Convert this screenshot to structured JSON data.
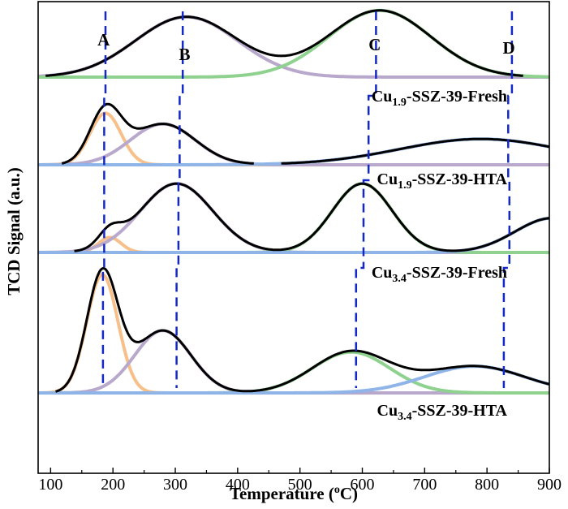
{
  "chart_data": {
    "type": "line",
    "xlabel": "Temperature (°C)",
    "xlabel_parts": {
      "before": "Temperature (",
      "sup": "o",
      "after": "C)"
    },
    "ylabel": "TCD Signal (a.u.)",
    "xlim": [
      80,
      900
    ],
    "xticks": [
      100,
      200,
      300,
      400,
      500,
      600,
      700,
      800,
      900
    ],
    "y_ticks_shown": false,
    "grid": false,
    "legend": "none",
    "colors": {
      "measured": "#000000",
      "peak_A": "#f7c08a",
      "peak_B": "#b8a9cc",
      "peak_C": "#8fd18f",
      "peak_D": "#8fb5e8",
      "guide_lines": "#1428c8"
    },
    "peak_labels": [
      {
        "text": "A",
        "temp": 185
      },
      {
        "text": "B",
        "temp": 315
      },
      {
        "text": "C",
        "temp": 620
      },
      {
        "text": "D",
        "temp": 835
      }
    ],
    "guide_lines": [
      {
        "name": "A",
        "points": [
          [
            188,
            1
          ],
          [
            186,
            2
          ],
          [
            186,
            3
          ],
          [
            184,
            4
          ]
        ]
      },
      {
        "name": "B",
        "points": [
          [
            312,
            1
          ],
          [
            307,
            2
          ],
          [
            305,
            3
          ],
          [
            302,
            4
          ]
        ]
      },
      {
        "name": "C",
        "points": [
          [
            622,
            1
          ],
          [
            610,
            2
          ],
          [
            602,
            3
          ],
          [
            590,
            4
          ]
        ]
      },
      {
        "name": "D",
        "points": [
          [
            840,
            1
          ],
          [
            834,
            2
          ],
          [
            836,
            3
          ],
          [
            827,
            4
          ]
        ]
      }
    ],
    "panels": [
      {
        "sample": {
          "pre": "Cu",
          "sub": "1.9",
          "post": "-SSZ-39-Fresh"
        },
        "baseline_index": 1,
        "components": [
          {
            "peak": "B",
            "center": 318,
            "height": 1.4,
            "width": 82
          },
          {
            "peak": "C",
            "center": 628,
            "height": 1.55,
            "width": 82
          }
        ]
      },
      {
        "sample": {
          "pre": "Cu",
          "sub": "1.9",
          "post": "-SSZ-39-HTA"
        },
        "baseline_index": 2,
        "components": [
          {
            "peak": "A",
            "center": 188,
            "height": 1.2,
            "width": 25
          },
          {
            "peak": "B",
            "center": 280,
            "height": 0.95,
            "width": 52
          },
          {
            "peak": "D",
            "center": 790,
            "height": 0.6,
            "width": 130
          }
        ]
      },
      {
        "sample": {
          "pre": "Cu",
          "sub": "3.4",
          "post": "-SSZ-39-Fresh"
        },
        "baseline_index": 3,
        "components": [
          {
            "peak": "A",
            "center": 195,
            "height": 0.35,
            "width": 18
          },
          {
            "peak": "B",
            "center": 302,
            "height": 1.6,
            "width": 58
          },
          {
            "peak": "C",
            "center": 600,
            "height": 1.6,
            "width": 48
          },
          {
            "peak": "D",
            "center": 905,
            "height": 0.8,
            "width": 60
          }
        ]
      },
      {
        "sample": {
          "pre": "Cu",
          "sub": "3.4",
          "post": "-SSZ-39-HTA"
        },
        "baseline_index": 4,
        "components": [
          {
            "peak": "A",
            "center": 183,
            "height": 2.75,
            "width": 25
          },
          {
            "peak": "B",
            "center": 280,
            "height": 1.45,
            "width": 45
          },
          {
            "peak": "C",
            "center": 582,
            "height": 0.95,
            "width": 62
          },
          {
            "peak": "D",
            "center": 780,
            "height": 0.62,
            "width": 80
          }
        ]
      }
    ]
  }
}
